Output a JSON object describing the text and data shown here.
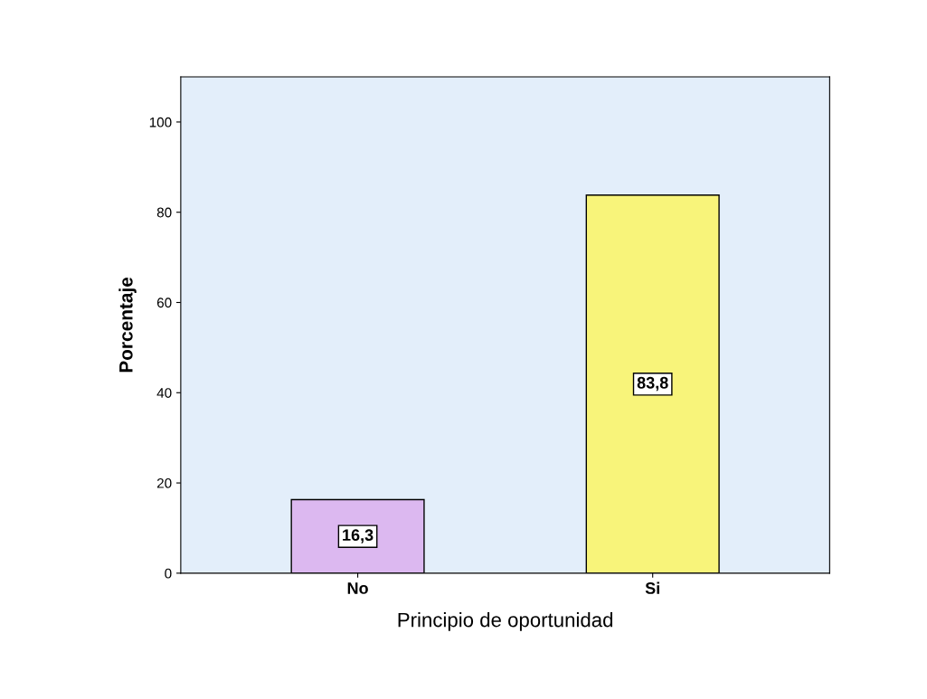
{
  "chart_data": {
    "type": "bar",
    "xlabel": "Principio de oportunidad",
    "ylabel": "Porcentaje",
    "categories": [
      "No",
      "Si"
    ],
    "values": [
      16.3,
      83.8
    ],
    "colors": [
      "#dcb8f0",
      "#f8f47a"
    ],
    "value_labels": [
      "16,3",
      "83,8"
    ],
    "ylim": [
      0,
      110
    ],
    "yticks": [
      0,
      20,
      40,
      60,
      80,
      100
    ],
    "grid": false
  }
}
